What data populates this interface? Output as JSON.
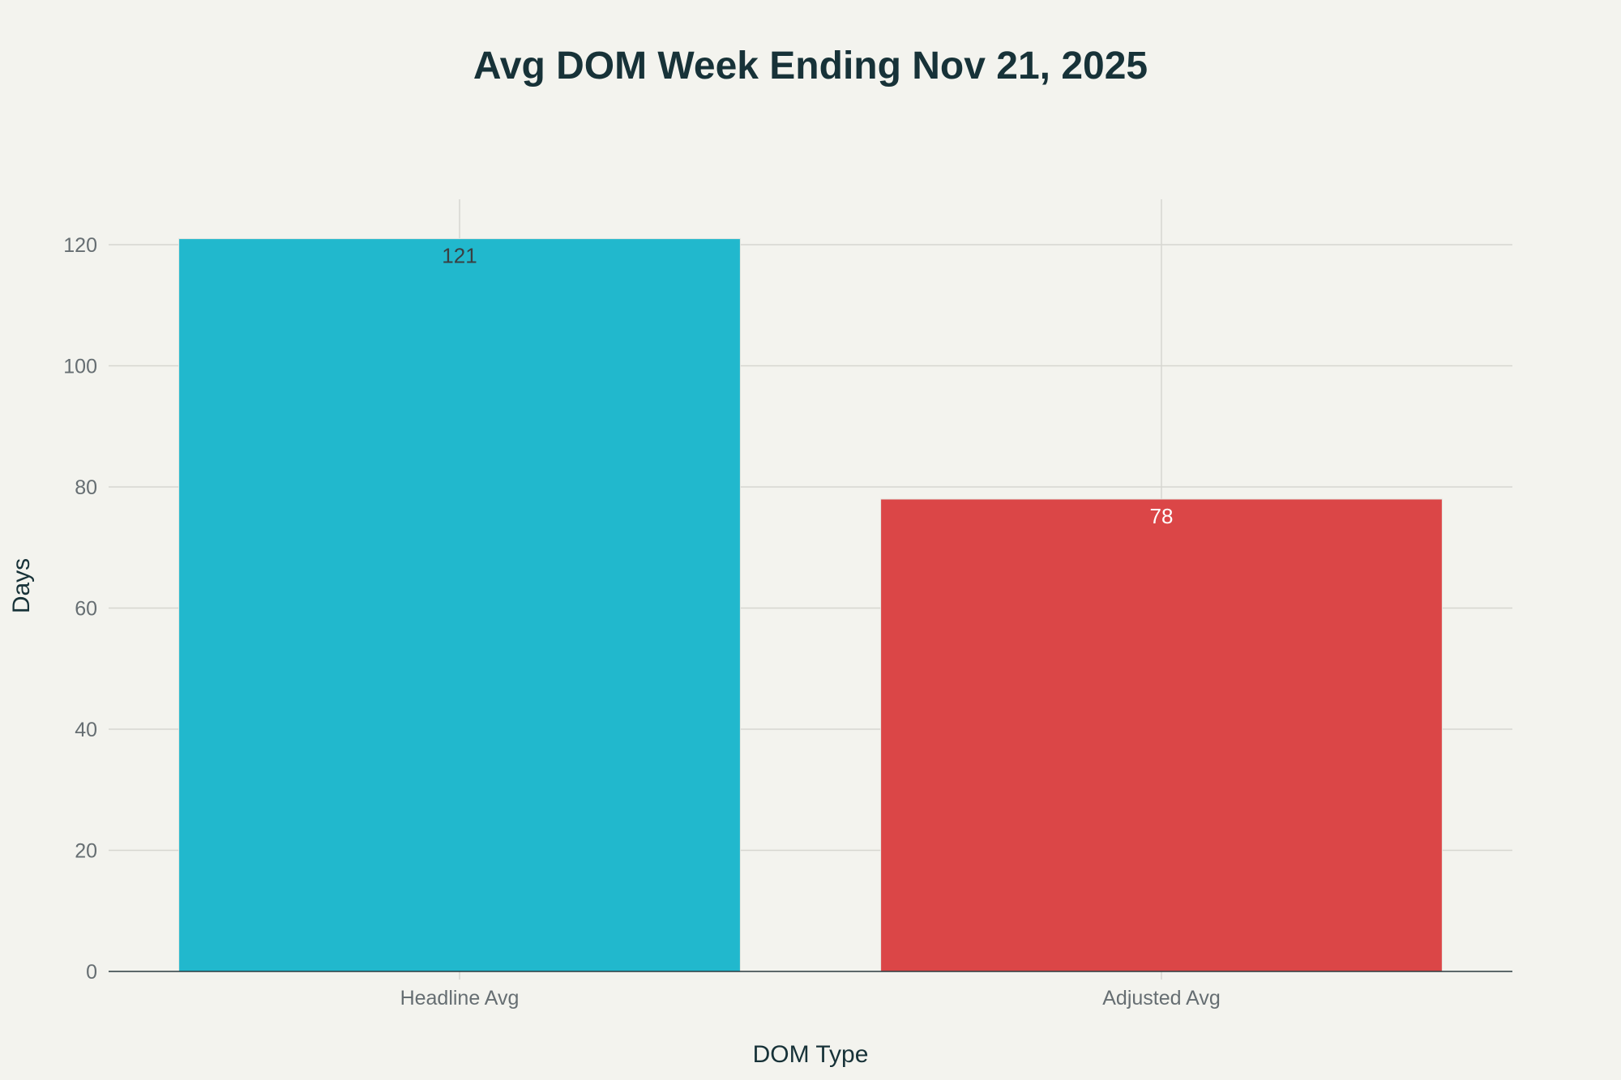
{
  "chart_data": {
    "type": "bar",
    "title": "Avg DOM Week Ending Nov 21, 2025",
    "xlabel": "DOM Type",
    "ylabel": "Days",
    "categories": [
      "Headline Avg",
      "Adjusted Avg"
    ],
    "values": [
      121,
      78
    ],
    "data_labels": [
      "121",
      "78"
    ],
    "colors": [
      "#21b8cd",
      "#db4647"
    ],
    "label_colors": [
      "#3a3f42",
      "#ffffff"
    ],
    "ylim": [
      0,
      127.5
    ],
    "yticks": [
      0,
      20,
      40,
      60,
      80,
      100,
      120
    ],
    "grid": true,
    "legend": "none"
  }
}
